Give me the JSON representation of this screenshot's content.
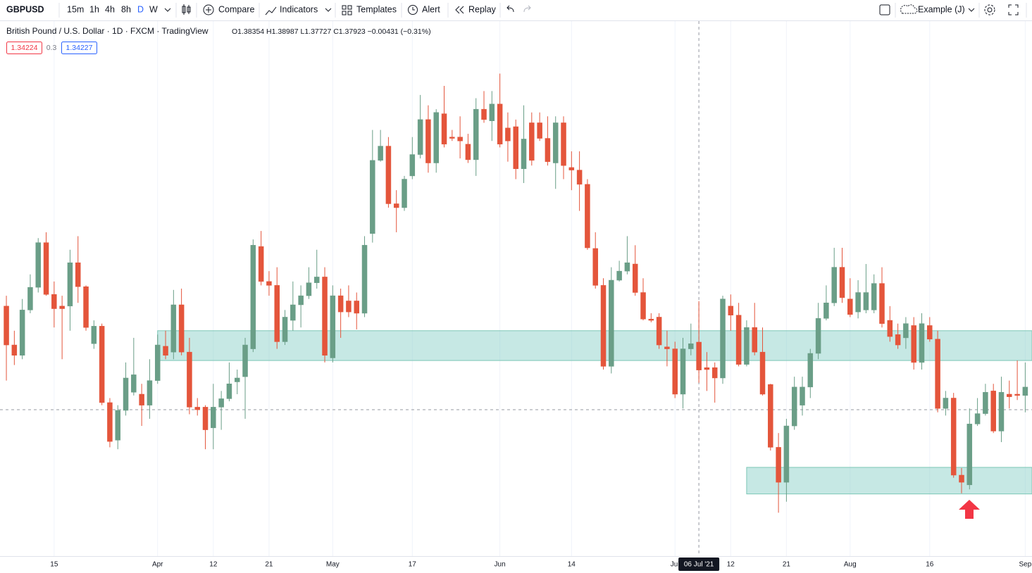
{
  "toolbar": {
    "symbol": "GBPUSD",
    "intervals": [
      "15m",
      "1h",
      "4h",
      "8h",
      "D",
      "W"
    ],
    "compare": "Compare",
    "indicators": "Indicators",
    "templates": "Templates",
    "alert": "Alert",
    "replay": "Replay",
    "layout": "Example (J)"
  },
  "legend": {
    "symbol": "British Pound / U.S. Dollar · 1D · FXCM · TradingView",
    "ohlc": "O1.38354 H1.38987 L1.37727 C1.37923 −0.00431 (−0.31%)",
    "bid": "1.34224",
    "spread": "0.3",
    "ask": "1.34227"
  },
  "chart_data": {
    "type": "candlestick",
    "up_color": "#6a9e87",
    "down_color": "#e4553b",
    "open": [
      1.3891,
      1.3831,
      1.3815,
      1.3885,
      1.392,
      1.3989,
      1.3909,
      1.3891,
      1.3891,
      1.3958,
      1.3921,
      1.3833,
      1.386,
      1.3742,
      1.3684,
      1.373,
      1.3758,
      1.3755,
      1.3738,
      1.3776,
      1.3829,
      1.382,
      1.3893,
      1.382,
      1.3735,
      1.3735,
      1.3703,
      1.3735,
      1.3748,
      1.3774,
      1.3782,
      1.3825,
      1.3983,
      1.3929,
      1.3923,
      1.3836,
      1.3869,
      1.3893,
      1.3907,
      1.3927,
      1.3936,
      1.3811,
      1.3907,
      1.3899,
      1.3899,
      1.388,
      1.4003,
      1.4116,
      1.4138,
      1.4049,
      1.4043,
      1.4092,
      1.4125,
      1.4179,
      1.4112,
      1.4188,
      1.4152,
      1.4152,
      1.4141,
      1.4117,
      1.4195,
      1.4177,
      1.4203,
      1.4166,
      1.4168,
      1.4103,
      1.4174,
      1.4174,
      1.415,
      1.4112,
      1.4174,
      1.4105,
      1.4101,
      1.4079,
      1.398,
      1.3923,
      1.3798,
      1.3931,
      1.3945,
      1.3956,
      1.3912,
      1.3871,
      1.3874,
      1.3828,
      1.3825,
      1.3755,
      1.3825,
      1.38354,
      1.3796,
      1.3796,
      1.378,
      1.3891,
      1.3877,
      1.3801,
      1.3858,
      1.382,
      1.377,
      1.3673,
      1.3619,
      1.3706,
      1.3738,
      1.3766,
      1.3818,
      1.3872,
      1.3896,
      1.3951,
      1.3902,
      1.3882,
      1.3885,
      1.3885,
      1.3926,
      1.3869,
      1.3847,
      1.3842,
      1.3861,
      1.3804,
      1.3861,
      1.384,
      1.3733,
      1.3749,
      1.363,
      1.3615,
      1.3709,
      1.3725,
      1.376,
      1.3698,
      1.3755,
      1.3755,
      1.3753
    ],
    "high": [
      1.3907,
      1.3853,
      1.3902,
      1.394,
      1.3996,
      1.4005,
      1.3929,
      1.3907,
      1.3978,
      1.3999,
      1.3923,
      1.3869,
      1.3864,
      1.3749,
      1.3738,
      1.3804,
      1.3842,
      1.3771,
      1.3809,
      1.3847,
      1.3853,
      1.3916,
      1.3918,
      1.3842,
      1.3749,
      1.3738,
      1.3771,
      1.376,
      1.3804,
      1.3793,
      1.3842,
      1.3994,
      1.4007,
      1.3945,
      1.3951,
      1.3885,
      1.3929,
      1.3923,
      1.3951,
      1.3978,
      1.3951,
      1.3923,
      1.3918,
      1.3923,
      1.3912,
      1.3999,
      1.4163,
      1.4163,
      1.4152,
      1.407,
      1.4092,
      1.4152,
      1.4217,
      1.4201,
      1.4195,
      1.4231,
      1.4163,
      1.4184,
      1.4157,
      1.4212,
      1.4223,
      1.4223,
      1.425,
      1.419,
      1.4179,
      1.4201,
      1.419,
      1.419,
      1.4184,
      1.4184,
      1.4184,
      1.413,
      1.413,
      1.4087,
      1.4005,
      1.3934,
      1.3951,
      1.3961,
      1.3999,
      1.3985,
      1.3934,
      1.388,
      1.388,
      1.3853,
      1.3836,
      1.3842,
      1.3864,
      1.38987,
      1.382,
      1.3804,
      1.3907,
      1.3909,
      1.3896,
      1.3869,
      1.3896,
      1.3858,
      1.3771,
      1.3695,
      1.3717,
      1.3782,
      1.3782,
      1.3825,
      1.3896,
      1.3923,
      1.3981,
      1.3981,
      1.3934,
      1.3931,
      1.3956,
      1.394,
      1.3951,
      1.3891,
      1.3864,
      1.3874,
      1.3874,
      1.388,
      1.3874,
      1.3853,
      1.376,
      1.3757,
      1.3641,
      1.3733,
      1.3749,
      1.3771,
      1.3771,
      1.3782,
      1.3776,
      1.3807,
      1.3804
    ],
    "low": [
      1.3776,
      1.38,
      1.3809,
      1.388,
      1.3912,
      1.3907,
      1.3858,
      1.3809,
      1.3853,
      1.3896,
      1.3853,
      1.3825,
      1.3738,
      1.3673,
      1.367,
      1.3722,
      1.3753,
      1.3706,
      1.3717,
      1.3771,
      1.3809,
      1.3809,
      1.3815,
      1.3724,
      1.3722,
      1.367,
      1.367,
      1.37,
      1.3744,
      1.3755,
      1.3717,
      1.382,
      1.3923,
      1.3907,
      1.3825,
      1.3831,
      1.3853,
      1.3858,
      1.3902,
      1.3918,
      1.3804,
      1.3804,
      1.3842,
      1.3874,
      1.3855,
      1.3874,
      1.3989,
      1.4114,
      1.4043,
      1.4005,
      1.4038,
      1.4087,
      1.4119,
      1.4097,
      1.4097,
      1.4136,
      1.4146,
      1.4119,
      1.4112,
      1.4092,
      1.4174,
      1.4146,
      1.4136,
      1.4114,
      1.4087,
      1.4081,
      1.4108,
      1.4146,
      1.4108,
      1.4072,
      1.4087,
      1.407,
      1.4038,
      1.3978,
      1.3918,
      1.3793,
      1.3787,
      1.3929,
      1.394,
      1.3907,
      1.3869,
      1.3866,
      1.3825,
      1.3798,
      1.3749,
      1.3733,
      1.3815,
      1.37727,
      1.376,
      1.3742,
      1.3771,
      1.3853,
      1.3798,
      1.3798,
      1.3815,
      1.3753,
      1.3668,
      1.3572,
      1.3589,
      1.37,
      1.3722,
      1.3749,
      1.3809,
      1.3869,
      1.3891,
      1.3896,
      1.3874,
      1.3872,
      1.388,
      1.388,
      1.3858,
      1.3836,
      1.3825,
      1.3825,
      1.3793,
      1.3793,
      1.3836,
      1.3727,
      1.3722,
      1.3626,
      1.3602,
      1.3608,
      1.3706,
      1.3722,
      1.3695,
      1.3681,
      1.3733,
      1.3746,
      1.3727
    ],
    "close": [
      1.3831,
      1.3815,
      1.3885,
      1.392,
      1.3989,
      1.3909,
      1.3887,
      1.3887,
      1.3958,
      1.3921,
      1.3858,
      1.386,
      1.3742,
      1.3682,
      1.373,
      1.378,
      1.3785,
      1.3738,
      1.3776,
      1.3831,
      1.3815,
      1.3893,
      1.382,
      1.3735,
      1.3731,
      1.37,
      1.3735,
      1.3748,
      1.3771,
      1.378,
      1.3831,
      1.3985,
      1.3929,
      1.3923,
      1.3836,
      1.3874,
      1.3893,
      1.3907,
      1.3927,
      1.3936,
      1.3815,
      1.3907,
      1.3882,
      1.3882,
      1.388,
      1.3985,
      1.4116,
      1.4138,
      1.4049,
      1.4043,
      1.4087,
      1.4125,
      1.4179,
      1.4112,
      1.419,
      1.4141,
      1.415,
      1.4146,
      1.4117,
      1.4195,
      1.4179,
      1.4203,
      1.4141,
      1.4146,
      1.4103,
      1.4149,
      1.4116,
      1.415,
      1.4114,
      1.4174,
      1.4108,
      1.4101,
      1.4079,
      1.3981,
      1.3923,
      1.3798,
      1.3931,
      1.3945,
      1.3958,
      1.3912,
      1.3871,
      1.3869,
      1.3831,
      1.3825,
      1.3755,
      1.3825,
      1.3833,
      1.37923,
      1.3793,
      1.378,
      1.3902,
      1.3877,
      1.3801,
      1.3858,
      1.382,
      1.3755,
      1.3673,
      1.3619,
      1.3706,
      1.3766,
      1.3766,
      1.3818,
      1.3872,
      1.3896,
      1.3951,
      1.3904,
      1.3878,
      1.3912,
      1.3912,
      1.3926,
      1.3864,
      1.3844,
      1.3831,
      1.3864,
      1.3804,
      1.3864,
      1.384,
      1.3733,
      1.3749,
      1.363,
      1.3619,
      1.3709,
      1.3725,
      1.3758,
      1.3698,
      1.3758,
      1.3751,
      1.3753,
      1.3766
    ],
    "xlim": [
      -0.8,
      128.85
    ],
    "ylim": [
      1.3505,
      1.4331
    ],
    "xticks": [
      {
        "value": 6,
        "label": "15"
      },
      {
        "value": 19,
        "label": "Apr"
      },
      {
        "value": 26,
        "label": "12"
      },
      {
        "value": 33,
        "label": "21"
      },
      {
        "value": 41,
        "label": "May"
      },
      {
        "value": 51,
        "label": "17"
      },
      {
        "value": 62,
        "label": "Jun"
      },
      {
        "value": 71,
        "label": "14"
      },
      {
        "value": 84,
        "label": "Jul"
      },
      {
        "value": 91,
        "label": "12"
      },
      {
        "value": 98,
        "label": "21"
      },
      {
        "value": 106,
        "label": "Aug"
      },
      {
        "value": 116,
        "label": "16"
      },
      {
        "value": 128,
        "label": "Sep"
      }
    ],
    "grid": true,
    "zones": [
      {
        "from": 19,
        "low": 1.3807,
        "high": 1.3853
      },
      {
        "from": 93,
        "low": 1.3601,
        "high": 1.3642
      }
    ],
    "crosshair": {
      "index": 87,
      "label": "06 Jul '21",
      "price": 1.3731
    }
  }
}
